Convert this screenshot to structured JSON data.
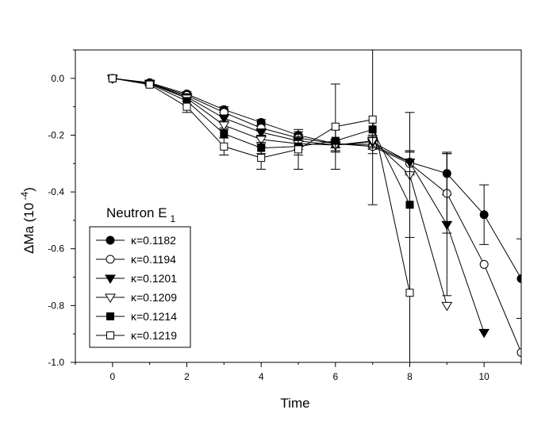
{
  "chart_data": {
    "type": "line",
    "title": "",
    "annotation": {
      "main": "Neutron E",
      "sub": "1"
    },
    "xlabel": "Time",
    "ylabel": {
      "prefix": "ΔMa  (10",
      "exponent": " -4",
      "suffix": ")"
    },
    "xlim": [
      -1,
      11
    ],
    "ylim": [
      -1.0,
      0.1
    ],
    "xticks": [
      0,
      2,
      4,
      6,
      8,
      10
    ],
    "xtick_labels": [
      "0",
      "2",
      "4",
      "6",
      "8",
      "10"
    ],
    "yticks": [
      0.0,
      -0.2,
      -0.4,
      -0.6,
      -0.8,
      -1.0
    ],
    "ytick_labels": [
      "0.0",
      "-0.2",
      "-0.4",
      "-0.6",
      "-0.8",
      "-1.0"
    ],
    "grid": false,
    "legend_position": "lower-left",
    "series": [
      {
        "name": "κ=0.1182",
        "marker": "circle-filled",
        "x": [
          0,
          1,
          2,
          3,
          4,
          5,
          6,
          7,
          8,
          9,
          10,
          11
        ],
        "y": [
          0,
          -0.015,
          -0.055,
          -0.11,
          -0.155,
          -0.2,
          -0.23,
          -0.235,
          -0.295,
          -0.335,
          -0.48,
          -0.705
        ],
        "err": [
          0.003,
          0.005,
          0.008,
          0.01,
          0.01,
          0.012,
          0.012,
          0.015,
          0.035,
          0.075,
          0.105,
          0.14
        ]
      },
      {
        "name": "κ=0.1194",
        "marker": "circle-open",
        "x": [
          0,
          1,
          2,
          3,
          4,
          5,
          6,
          7,
          8,
          9,
          10,
          11
        ],
        "y": [
          0,
          -0.017,
          -0.06,
          -0.12,
          -0.175,
          -0.21,
          -0.23,
          -0.24,
          -0.3,
          -0.405,
          -0.655,
          -0.965
        ],
        "err": [
          0.003,
          0.005,
          0.008,
          0.01,
          0.01,
          0.012,
          0.015,
          0.025,
          0.04,
          0.14,
          0.0,
          0.0
        ]
      },
      {
        "name": "κ=0.1201",
        "marker": "triangle-down-filled",
        "x": [
          0,
          1,
          2,
          3,
          4,
          5,
          6,
          7,
          8,
          9,
          10
        ],
        "y": [
          0,
          -0.018,
          -0.065,
          -0.14,
          -0.19,
          -0.22,
          -0.235,
          -0.225,
          -0.295,
          -0.515,
          -0.895
        ],
        "err": [
          0.003,
          0.005,
          0.008,
          0.01,
          0.012,
          0.015,
          0.02,
          0.02,
          0.04,
          0.25,
          0.0
        ]
      },
      {
        "name": "κ=0.1209",
        "marker": "triangle-down-open",
        "x": [
          0,
          1,
          2,
          3,
          4,
          5,
          6,
          7,
          8,
          9
        ],
        "y": [
          0,
          -0.018,
          -0.07,
          -0.165,
          -0.215,
          -0.23,
          -0.235,
          -0.22,
          -0.34,
          -0.8
        ],
        "err": [
          0.003,
          0.005,
          0.01,
          0.01,
          0.015,
          0.02,
          0.02,
          0.02,
          0.22,
          0.0
        ]
      },
      {
        "name": "κ=0.1214",
        "marker": "square-filled",
        "x": [
          0,
          1,
          2,
          3,
          4,
          5,
          6
        ],
        "y": [
          0,
          -0.02,
          -0.08,
          -0.195,
          -0.245,
          -0.24,
          -0.22
        ],
        "err": [
          0.003,
          0.005,
          0.012,
          0.015,
          0.02,
          0.03,
          0.04
        ],
        "extra_points": [
          {
            "x": 7,
            "y": -0.18
          },
          {
            "x": 8,
            "y": -0.445
          }
        ],
        "full_x": [
          0,
          1,
          2,
          3,
          4,
          5,
          6,
          7,
          8
        ],
        "full_y": [
          0,
          -0.02,
          -0.08,
          -0.195,
          -0.245,
          -0.24,
          -0.22,
          -0.18,
          -0.445
        ]
      },
      {
        "name": "κ=0.1219",
        "marker": "square-open",
        "x": [
          0,
          1,
          2,
          3,
          4,
          5,
          6,
          7,
          8
        ],
        "y": [
          0,
          -0.022,
          -0.1,
          -0.24,
          -0.28,
          -0.25,
          -0.17,
          -0.145,
          -0.755
        ],
        "err": [
          0.003,
          0.005,
          0.02,
          0.03,
          0.04,
          0.07,
          0.15,
          0.3,
          0.5
        ]
      }
    ]
  }
}
